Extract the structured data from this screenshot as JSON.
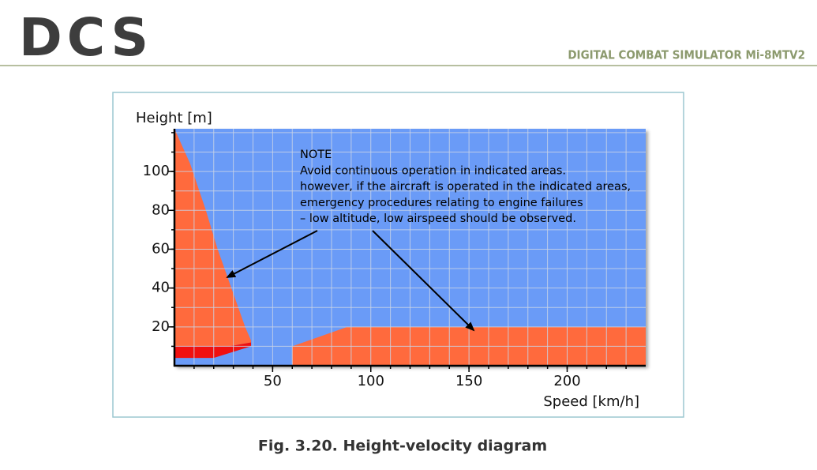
{
  "header": {
    "logo": "DCS",
    "title": "DIGITAL COMBAT SIMULATOR Mi-8MTV2"
  },
  "figure": {
    "caption": "Fig. 3.20. Height-velocity diagram",
    "chart_data": {
      "type": "area-regions",
      "ylabel": "Height [m]",
      "xlabel": "Speed [km/h]",
      "note": [
        "NOTE",
        "Avoid continuous operation in indicated areas.",
        "however, if the aircraft is operated in the indicated areas,",
        "emergency procedures relating to engine failures",
        "– low altitude, low airspeed should be observed."
      ],
      "xlim": [
        0,
        240
      ],
      "ylim": [
        0,
        122
      ],
      "xticks": [
        50,
        100,
        150,
        200
      ],
      "yticks": [
        20,
        40,
        60,
        80,
        100
      ],
      "xgrid": [
        10,
        20,
        30,
        40,
        50,
        60,
        70,
        80,
        90,
        100,
        110,
        120,
        130,
        140,
        150,
        160,
        170,
        180,
        190,
        200,
        210,
        220,
        230
      ],
      "ygrid": [
        10,
        20,
        30,
        40,
        50,
        60,
        70,
        80,
        90,
        100,
        110,
        120
      ],
      "background": "#6b9bf7",
      "regions": [
        {
          "color": "#ff6a3d",
          "x": [
            0,
            8,
            16,
            22,
            29,
            36,
            39,
            39,
            28,
            0
          ],
          "y": [
            122,
            104,
            80,
            60,
            40,
            20,
            13,
            12,
            10,
            10
          ]
        },
        {
          "color": "#ff6a3d",
          "x": [
            60,
            60,
            88,
            240,
            240
          ],
          "y": [
            0,
            10,
            20,
            20,
            0
          ]
        },
        {
          "color": "#f01010",
          "x": [
            0,
            28,
            39,
            39,
            20,
            0
          ],
          "y": [
            10,
            10,
            12,
            10,
            4,
            4
          ]
        }
      ]
    }
  }
}
